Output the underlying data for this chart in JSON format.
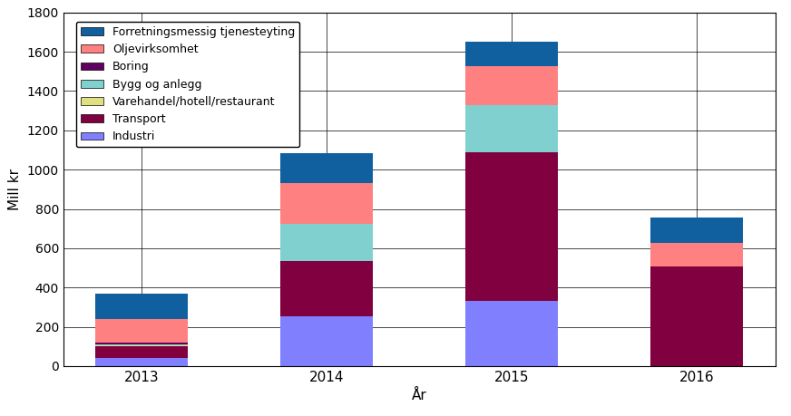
{
  "years": [
    "2013",
    "2014",
    "2015",
    "2016"
  ],
  "categories": [
    "Industri",
    "Transport",
    "Varehandel/hotell/restaurant",
    "Bygg og anlegg",
    "Boring",
    "Oljevirksomhet",
    "Forretningsmessig tjenesteyting"
  ],
  "colors": [
    "#8080ff",
    "#800040",
    "#e0e080",
    "#80d0d0",
    "#600060",
    "#ff8080",
    "#1060a0"
  ],
  "values": {
    "Industri": [
      40,
      255,
      330,
      0
    ],
    "Transport": [
      60,
      280,
      760,
      505
    ],
    "Varehandel/hotell/restaurant": [
      5,
      0,
      0,
      0
    ],
    "Bygg og anlegg": [
      5,
      190,
      240,
      0
    ],
    "Boring": [
      10,
      0,
      0,
      0
    ],
    "Oljevirksomhet": [
      120,
      205,
      195,
      120
    ],
    "Forretningsmessig tjenesteyting": [
      130,
      155,
      125,
      130
    ]
  },
  "ylabel": "Mill kr",
  "xlabel": "År",
  "ylim": [
    0,
    1800
  ],
  "yticks": [
    0,
    200,
    400,
    600,
    800,
    1000,
    1200,
    1400,
    1600,
    1800
  ],
  "background_color": "#ffffff",
  "border_color": "#5b9bd5"
}
